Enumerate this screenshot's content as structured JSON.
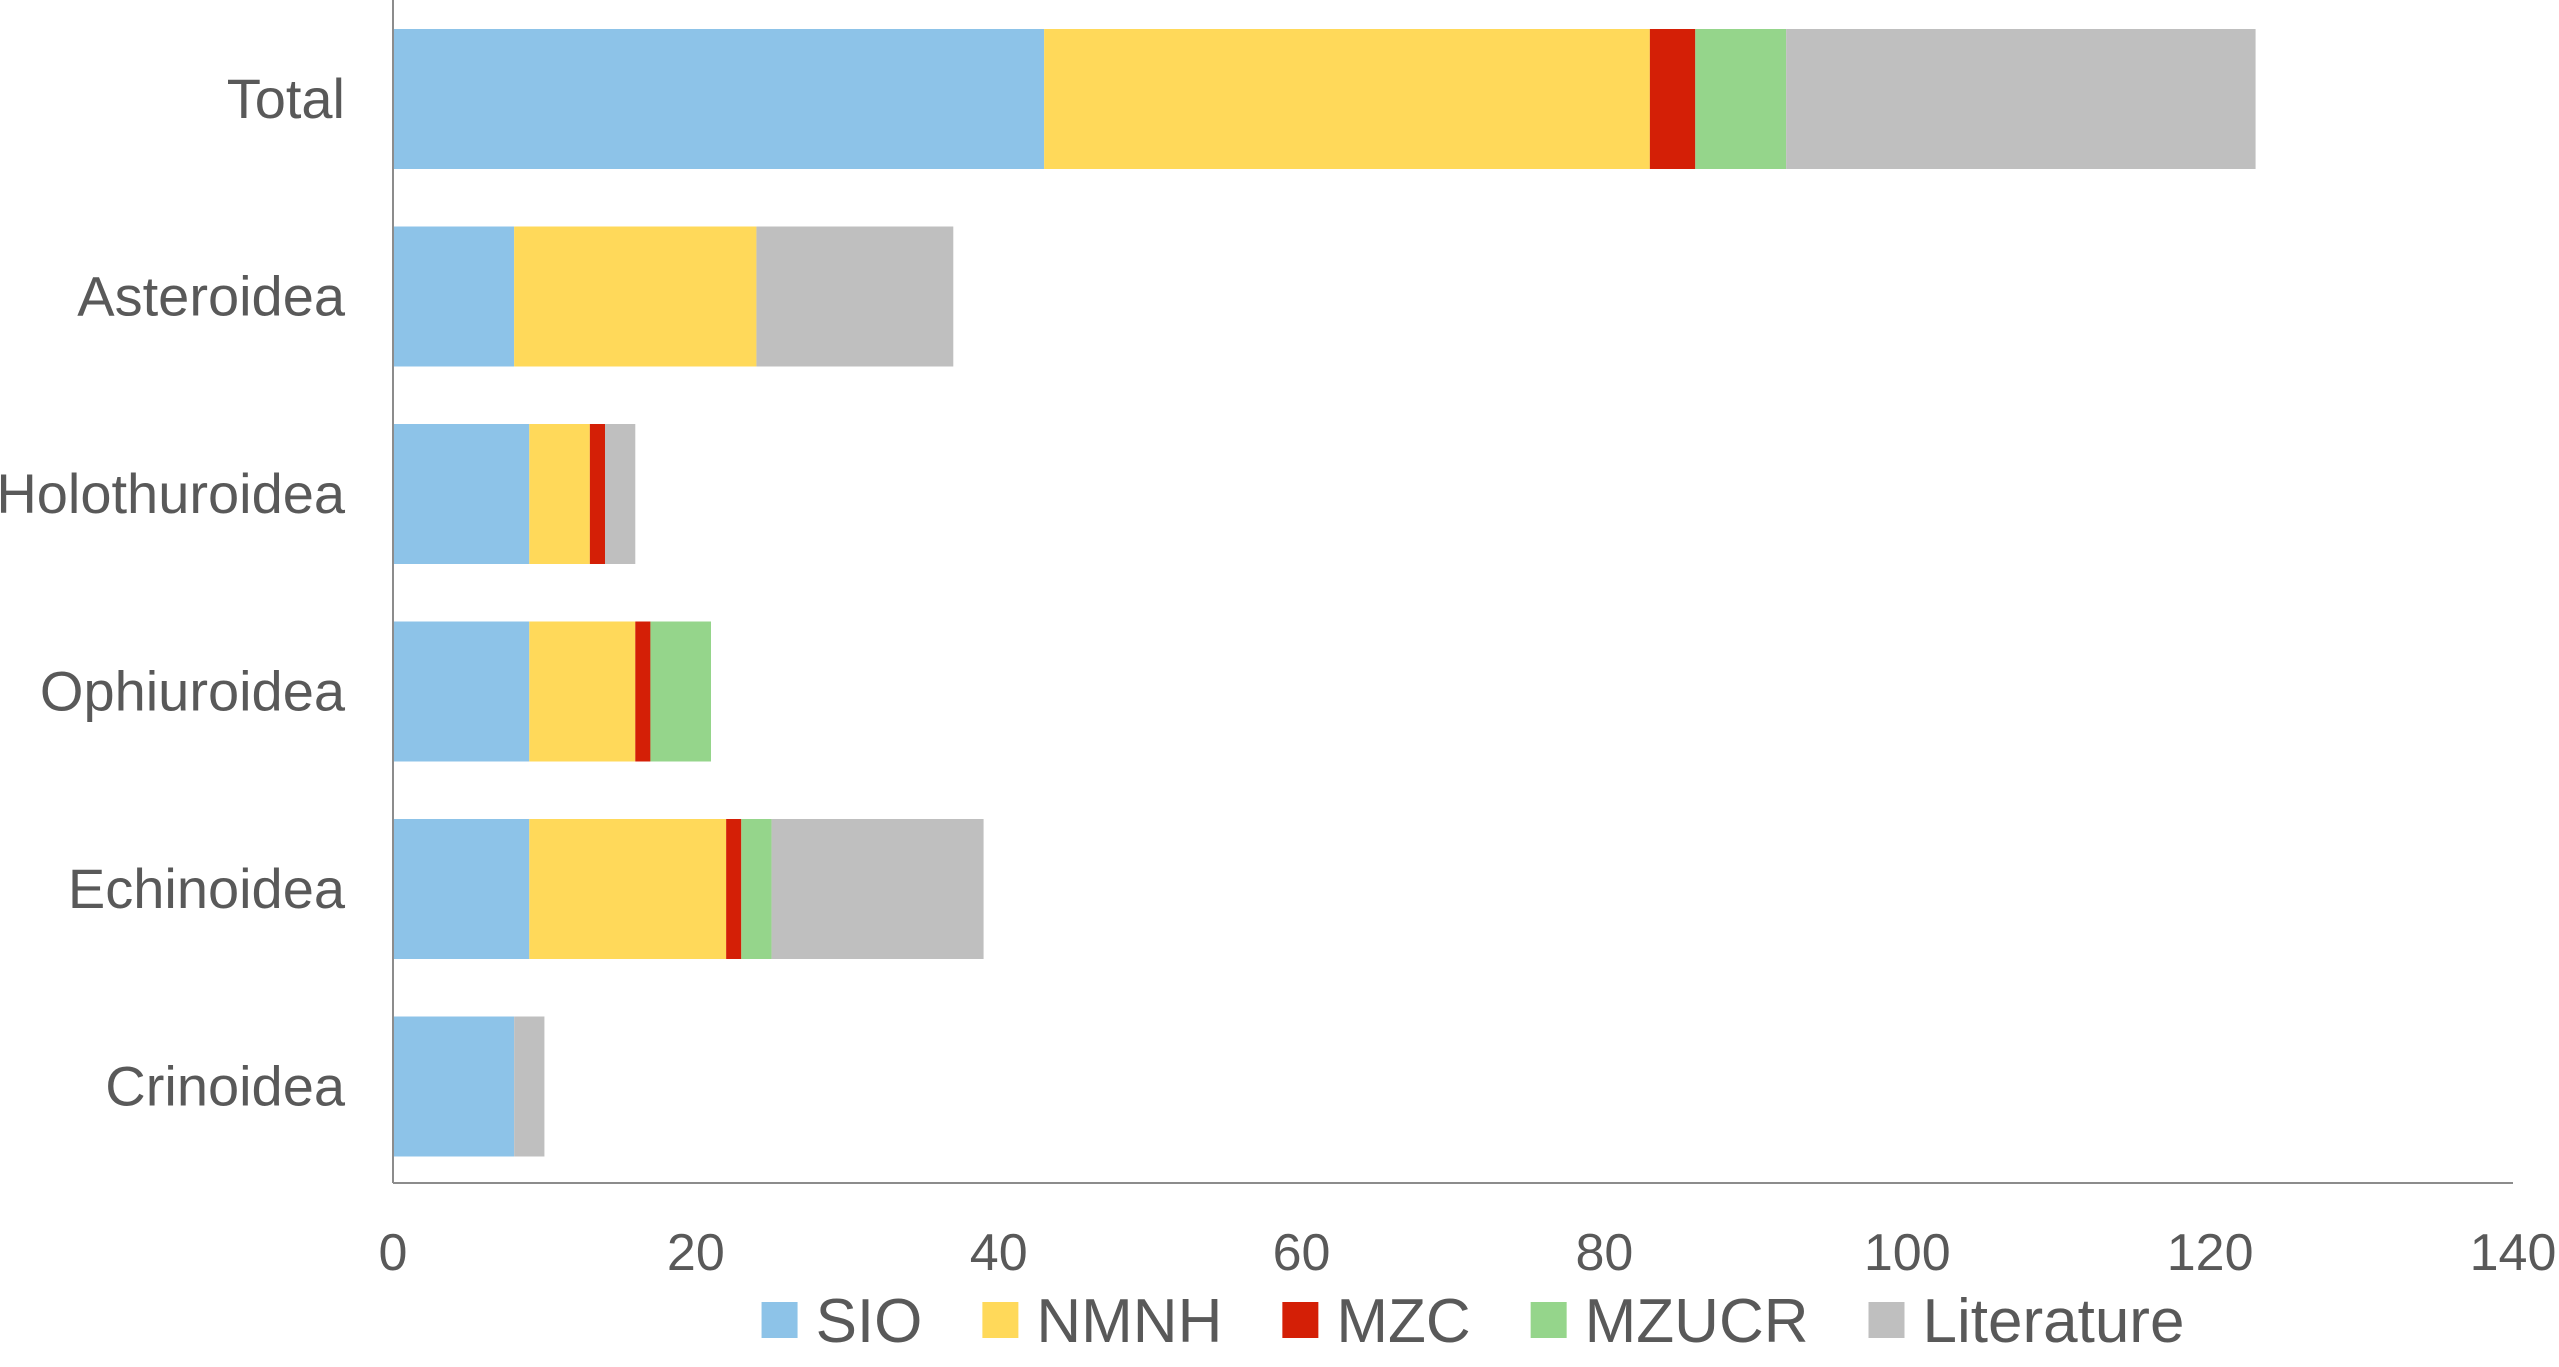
{
  "chart_data": {
    "type": "bar",
    "orientation": "horizontal",
    "stacked": true,
    "categories": [
      "Total",
      "Asteroidea",
      "Holothuroidea",
      "Ophiuroidea",
      "Echinoidea",
      "Crinoidea"
    ],
    "series": [
      {
        "name": "SIO",
        "color": "#8DC3E8",
        "values": [
          43,
          8,
          9,
          9,
          9,
          8
        ]
      },
      {
        "name": "NMNH",
        "color": "#FFD95A",
        "values": [
          40,
          16,
          4,
          7,
          13,
          0
        ]
      },
      {
        "name": "MZC",
        "color": "#D41F06",
        "values": [
          3,
          0,
          1,
          1,
          1,
          0
        ]
      },
      {
        "name": "MZUCR",
        "color": "#95D58B",
        "values": [
          6,
          0,
          0,
          4,
          2,
          0
        ]
      },
      {
        "name": "Literature",
        "color": "#BFBFBF",
        "values": [
          31,
          13,
          2,
          0,
          14,
          2
        ]
      }
    ],
    "xlim": [
      0,
      140
    ],
    "xticks": [
      0,
      20,
      40,
      60,
      80,
      100,
      120,
      140
    ],
    "grid": false,
    "legend_position": "bottom"
  }
}
